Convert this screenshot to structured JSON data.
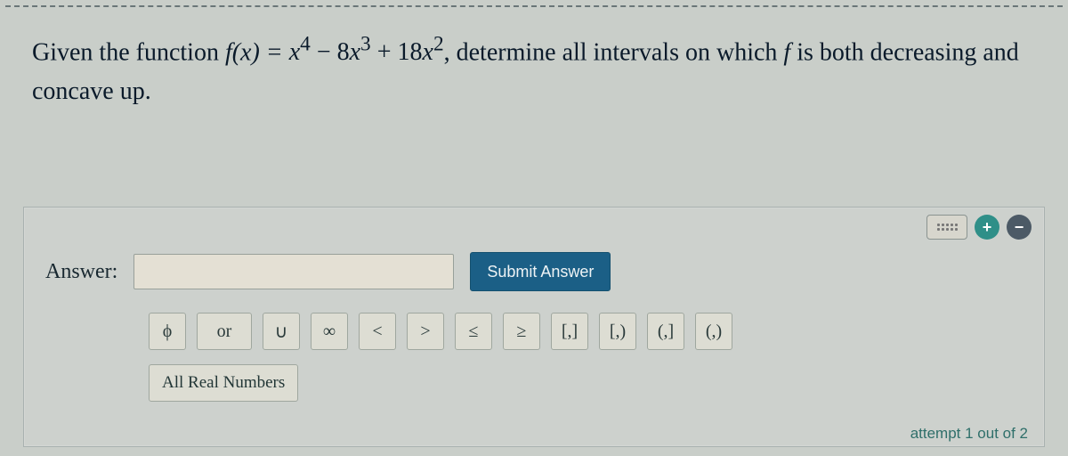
{
  "question": {
    "prefix": "Given the function ",
    "func_lhs": "f(x) = ",
    "func_rhs_html": "x⁴ − 8x³ + 18x²",
    "mid": ", determine all intervals on which ",
    "f_symbol": "f",
    "suffix": " is both decreasing and concave up."
  },
  "answer": {
    "label": "Answer:",
    "value": "",
    "submit_label": "Submit Answer"
  },
  "symbols": {
    "phi": "ϕ",
    "or": "or",
    "union": "∪",
    "infinity": "∞",
    "lt": "<",
    "gt": ">",
    "le": "≤",
    "ge": "≥",
    "cc": "[,]",
    "co": "[,)",
    "oc": "(,]",
    "oo": "(,)",
    "all_real": "All Real Numbers"
  },
  "toolbar": {
    "keyboard_title": "Keyboard",
    "plus": "+",
    "minus": "−"
  },
  "status": {
    "attempt": "attempt 1 out of 2"
  },
  "colors": {
    "page_bg": "#c9cec9",
    "panel_bg": "#cdd1cd",
    "submit_bg": "#1b5f86",
    "plus_bg": "#2f8f88",
    "minus_bg": "#4c5a66"
  }
}
